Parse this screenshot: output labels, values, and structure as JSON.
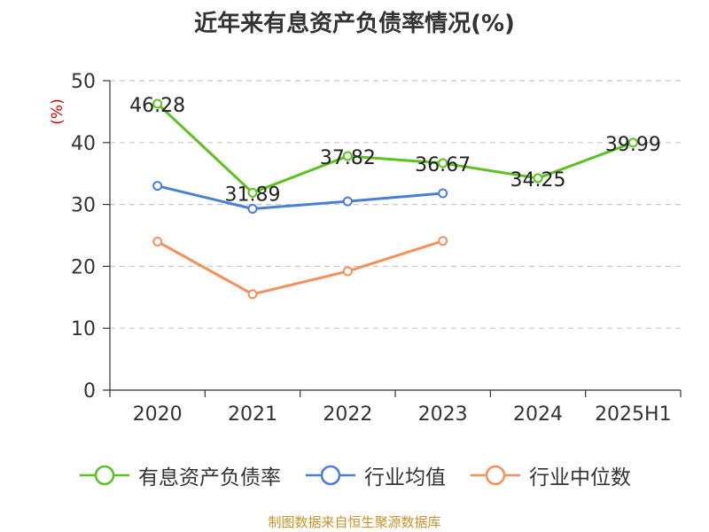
{
  "chart_data": {
    "type": "line",
    "title": "近年来有息资产负债率情况(%)",
    "ylabel": "(%)",
    "categories": [
      "2020",
      "2021",
      "2022",
      "2023",
      "2024",
      "2025H1"
    ],
    "ylim": [
      0,
      50
    ],
    "yticks": [
      0,
      10,
      20,
      30,
      40,
      50
    ],
    "grid": true,
    "legend_position": "bottom",
    "series": [
      {
        "name": "有息资产负债率",
        "color": "#5cc21d",
        "values": [
          46.28,
          31.89,
          37.82,
          36.67,
          34.25,
          39.99
        ],
        "labels": [
          "46.28",
          "31.89",
          "37.82",
          "36.67",
          "34.25",
          "39.99"
        ]
      },
      {
        "name": "行业均值",
        "color": "#4a7fd6",
        "values": [
          33.0,
          29.3,
          30.5,
          31.8,
          null,
          null
        ]
      },
      {
        "name": "行业中位数",
        "color": "#f5905a",
        "values": [
          24.0,
          15.5,
          19.2,
          24.1,
          null,
          null
        ]
      }
    ]
  },
  "source_note": "制图数据来自恒生聚源数据库"
}
